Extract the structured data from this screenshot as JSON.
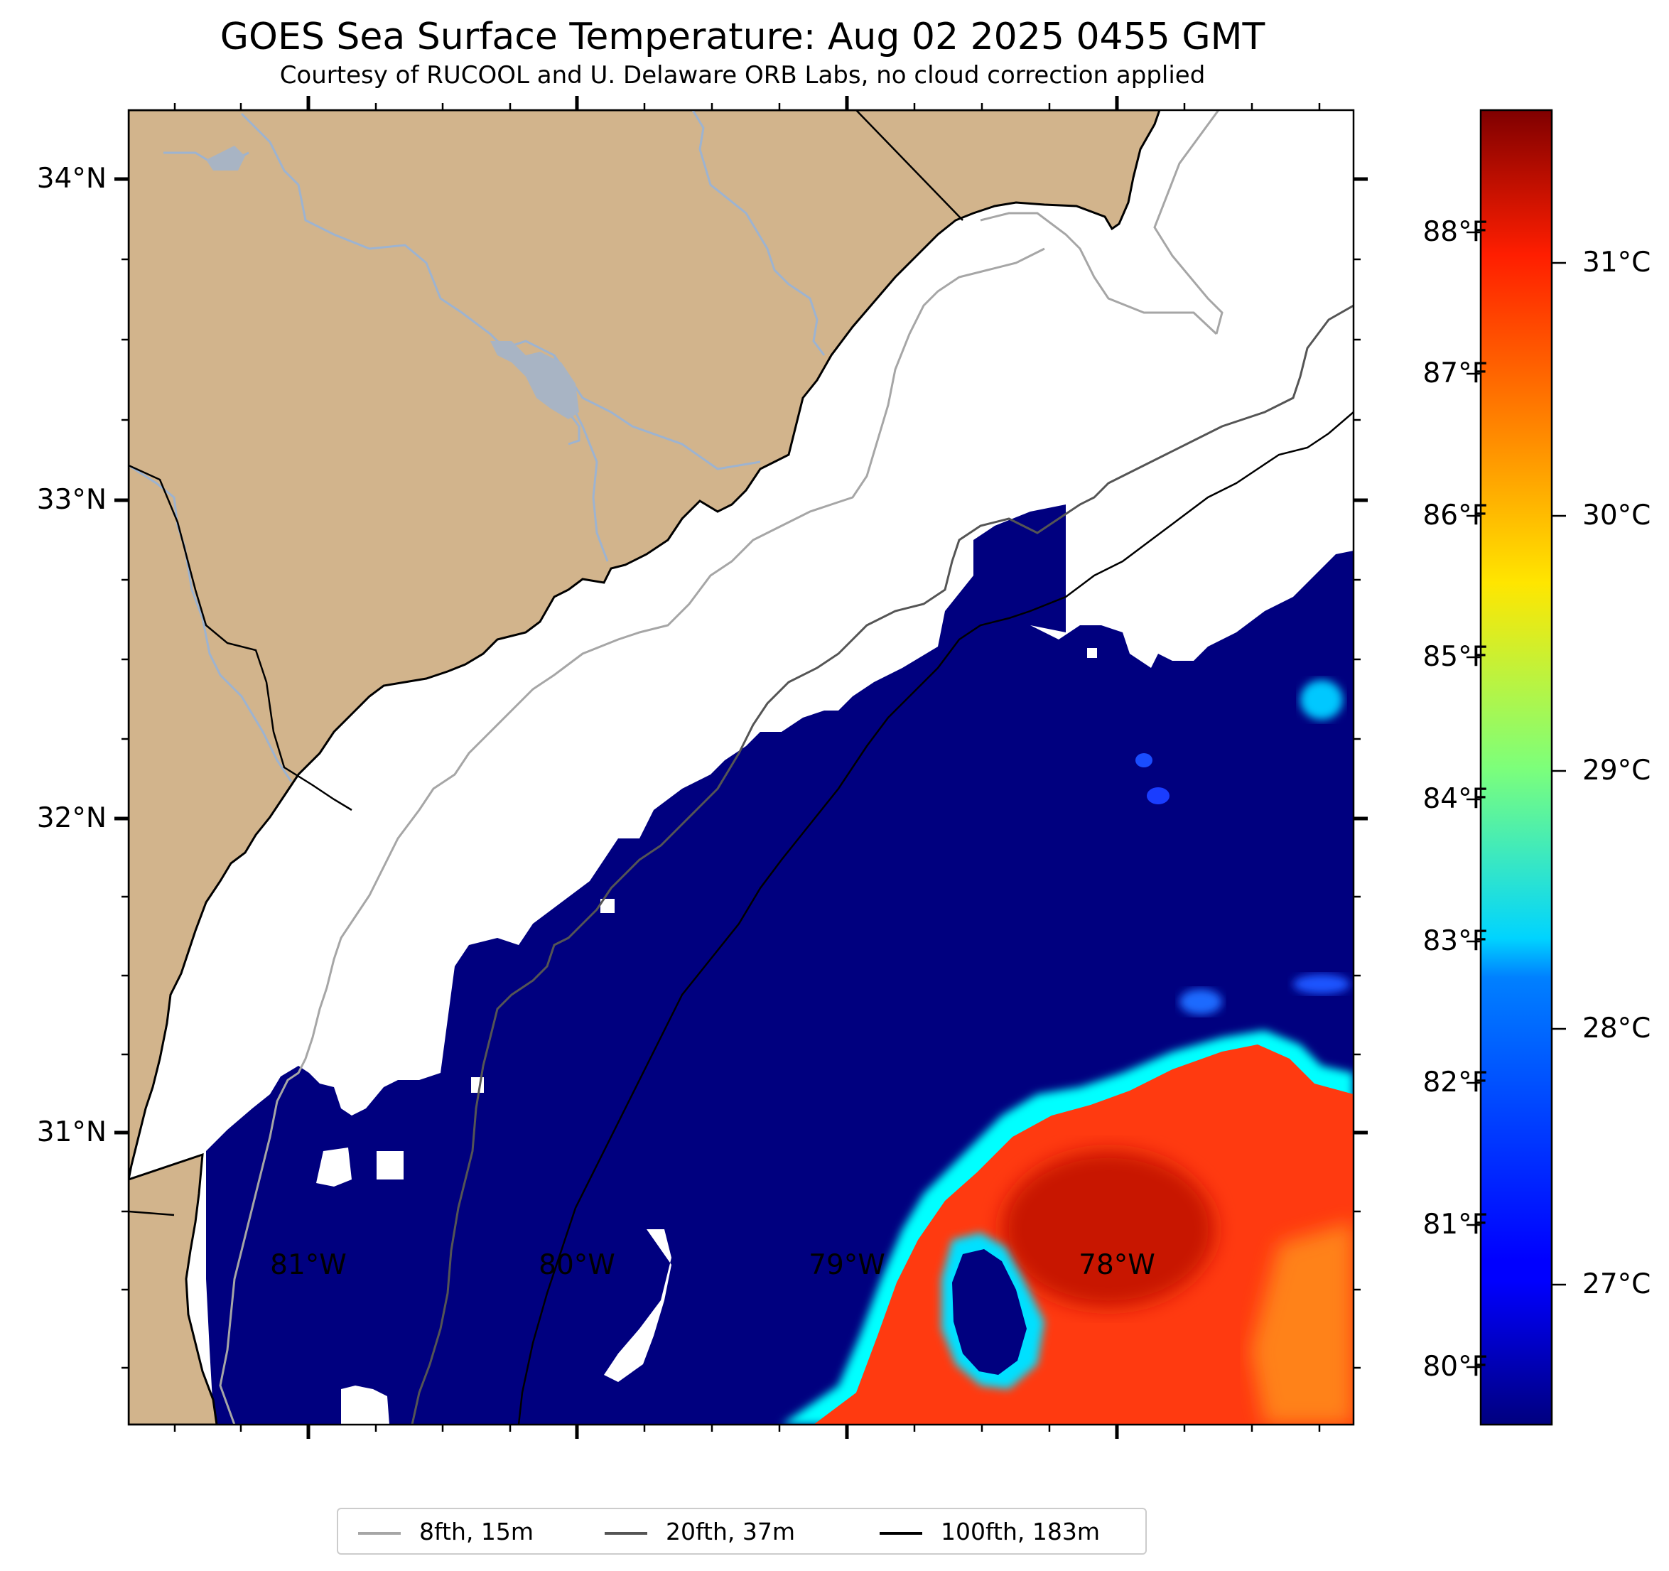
{
  "title": "GOES Sea Surface Temperature: Aug 02 2025 0455 GMT",
  "subtitle": "Courtesy of RUCOOL and U. Delaware ORB Labs, no cloud correction applied",
  "colors": {
    "land": "#d2b48c",
    "ocean_cold": "#00007f",
    "no_data": "#ffffff",
    "rivers": "#9db3d0",
    "coastline": "#000000",
    "isobath_8fth": "#a6a6a6",
    "isobath_20fth": "#555555",
    "isobath_100fth": "#000000"
  },
  "map": {
    "lon_range": [
      -81.67,
      -77.13
    ],
    "lat_range": [
      30.11,
      34.22
    ],
    "lat_ticks": [
      "34°N",
      "33°N",
      "32°N",
      "31°N"
    ],
    "lon_ticks": [
      "81°W",
      "80°W",
      "79°W",
      "78°W"
    ]
  },
  "colorbar": {
    "colormap": "jet",
    "range_c": [
      26.4,
      31.6
    ],
    "celsius_ticks": [
      "31°C",
      "30°C",
      "29°C",
      "28°C",
      "27°C"
    ],
    "fahrenheit_ticks": [
      "88°F",
      "87°F",
      "86°F",
      "85°F",
      "84°F",
      "83°F",
      "82°F",
      "81°F",
      "80°F"
    ]
  },
  "legend": [
    {
      "label": "8fth, 15m",
      "color": "#a6a6a6"
    },
    {
      "label": "20fth, 37m",
      "color": "#555555"
    },
    {
      "label": "100fth, 183m",
      "color": "#000000"
    }
  ]
}
